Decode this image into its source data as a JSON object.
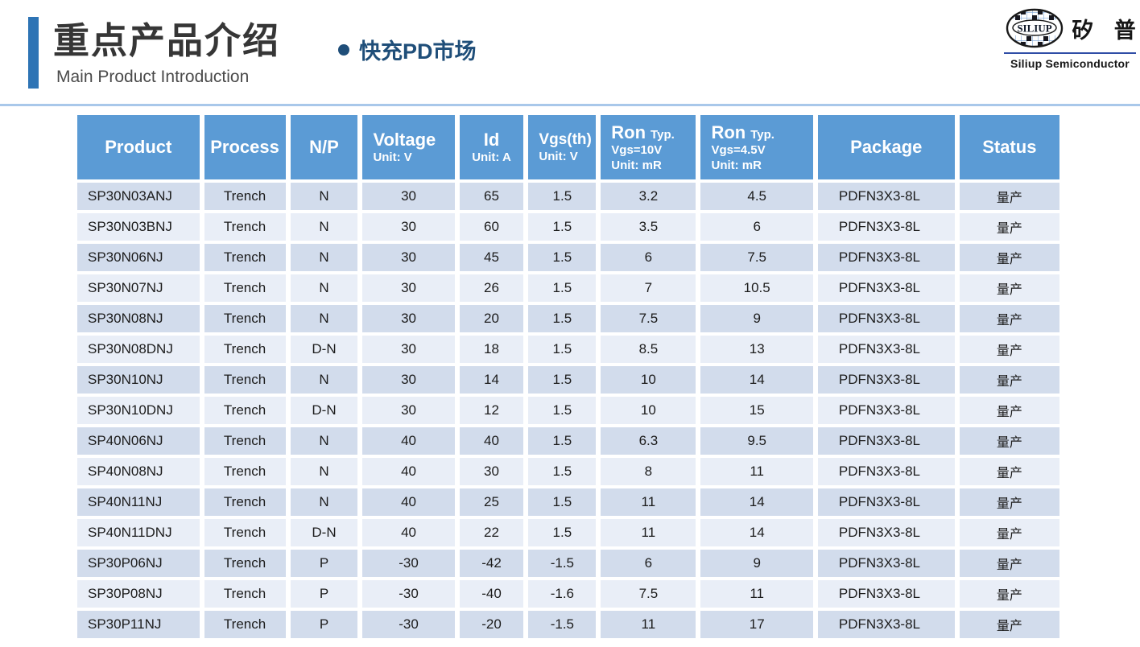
{
  "header": {
    "title": "重点产品介绍",
    "subtitle": "Main Product Introduction",
    "market_label": "快充PD市场"
  },
  "logo": {
    "mark_text": "SILIUP",
    "name_cn": "矽 普",
    "name_en": "Siliup Semiconductor"
  },
  "colors": {
    "accent_blue": "#2E74B5",
    "navy": "#1F4E79",
    "table_header_blue": "#5B9BD5",
    "row_band_dark": "#D2DCEC",
    "row_band_light": "#E9EEF7",
    "divider_blue": "#A9C8EA",
    "logo_rule_blue": "#2F4DA6"
  },
  "table": {
    "columns": [
      {
        "label": "Product"
      },
      {
        "label": "Process"
      },
      {
        "label": "N/P"
      },
      {
        "label": "Voltage",
        "sub": "Unit: V"
      },
      {
        "label": "Id",
        "sub": "Unit: A"
      },
      {
        "label": "Vgs(th)",
        "sub": "Unit: V"
      },
      {
        "label": "Ron",
        "typ": "Typ.",
        "cond": "Vgs=10V",
        "unit": "Unit: mR"
      },
      {
        "label": "Ron",
        "typ": "Typ.",
        "cond": "Vgs=4.5V",
        "unit": "Unit: mR"
      },
      {
        "label": "Package"
      },
      {
        "label": "Status"
      }
    ],
    "rows": [
      [
        "SP30N03ANJ",
        "Trench",
        "N",
        "30",
        "65",
        "1.5",
        "3.2",
        "4.5",
        "PDFN3X3-8L",
        "量产"
      ],
      [
        "SP30N03BNJ",
        "Trench",
        "N",
        "30",
        "60",
        "1.5",
        "3.5",
        "6",
        "PDFN3X3-8L",
        "量产"
      ],
      [
        "SP30N06NJ",
        "Trench",
        "N",
        "30",
        "45",
        "1.5",
        "6",
        "7.5",
        "PDFN3X3-8L",
        "量产"
      ],
      [
        "SP30N07NJ",
        "Trench",
        "N",
        "30",
        "26",
        "1.5",
        "7",
        "10.5",
        "PDFN3X3-8L",
        "量产"
      ],
      [
        "SP30N08NJ",
        "Trench",
        "N",
        "30",
        "20",
        "1.5",
        "7.5",
        "9",
        "PDFN3X3-8L",
        "量产"
      ],
      [
        "SP30N08DNJ",
        "Trench",
        "D-N",
        "30",
        "18",
        "1.5",
        "8.5",
        "13",
        "PDFN3X3-8L",
        "量产"
      ],
      [
        "SP30N10NJ",
        "Trench",
        "N",
        "30",
        "14",
        "1.5",
        "10",
        "14",
        "PDFN3X3-8L",
        "量产"
      ],
      [
        "SP30N10DNJ",
        "Trench",
        "D-N",
        "30",
        "12",
        "1.5",
        "10",
        "15",
        "PDFN3X3-8L",
        "量产"
      ],
      [
        "SP40N06NJ",
        "Trench",
        "N",
        "40",
        "40",
        "1.5",
        "6.3",
        "9.5",
        "PDFN3X3-8L",
        "量产"
      ],
      [
        "SP40N08NJ",
        "Trench",
        "N",
        "40",
        "30",
        "1.5",
        "8",
        "11",
        "PDFN3X3-8L",
        "量产"
      ],
      [
        "SP40N11NJ",
        "Trench",
        "N",
        "40",
        "25",
        "1.5",
        "11",
        "14",
        "PDFN3X3-8L",
        "量产"
      ],
      [
        "SP40N11DNJ",
        "Trench",
        "D-N",
        "40",
        "22",
        "1.5",
        "11",
        "14",
        "PDFN3X3-8L",
        "量产"
      ],
      [
        "SP30P06NJ",
        "Trench",
        "P",
        "-30",
        "-42",
        "-1.5",
        "6",
        "9",
        "PDFN3X3-8L",
        "量产"
      ],
      [
        "SP30P08NJ",
        "Trench",
        "P",
        "-30",
        "-40",
        "-1.6",
        "7.5",
        "11",
        "PDFN3X3-8L",
        "量产"
      ],
      [
        "SP30P11NJ",
        "Trench",
        "P",
        "-30",
        "-20",
        "-1.5",
        "11",
        "17",
        "PDFN3X3-8L",
        "量产"
      ]
    ]
  }
}
